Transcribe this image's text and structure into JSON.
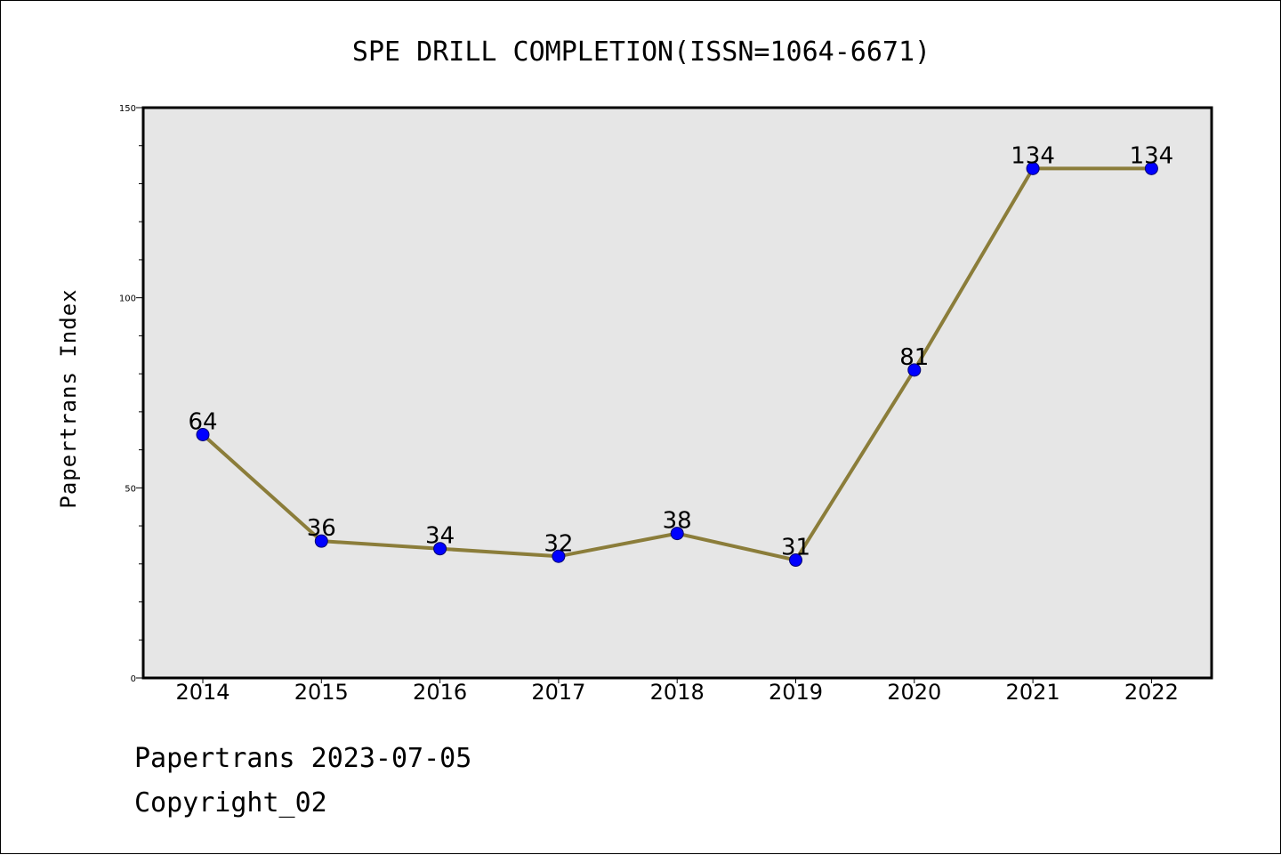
{
  "chart_data": {
    "type": "line",
    "title": "SPE DRILL COMPLETION(ISSN=1064-6671)",
    "xlabel": "",
    "ylabel": "Papertrans Index",
    "categories": [
      "2014",
      "2015",
      "2016",
      "2017",
      "2018",
      "2019",
      "2020",
      "2021",
      "2022"
    ],
    "series": [
      {
        "values": [
          64,
          36,
          34,
          32,
          38,
          31,
          81,
          134,
          134
        ]
      }
    ],
    "data_labels": [
      "64",
      "36",
      "34",
      "32",
      "38",
      "31",
      "81",
      "134",
      "134"
    ],
    "ylim": [
      0,
      150
    ],
    "yticks": [
      0,
      50,
      100,
      150
    ],
    "ytick_labels": [
      "0",
      "50",
      "100",
      "150"
    ],
    "grid": false,
    "colors": {
      "line": "#8b7d3a",
      "marker": "#0000ff",
      "plot_background": "#e6e6e6"
    }
  },
  "footer": {
    "line1": "Papertrans 2023-07-05",
    "line2": "Copyright_02"
  }
}
